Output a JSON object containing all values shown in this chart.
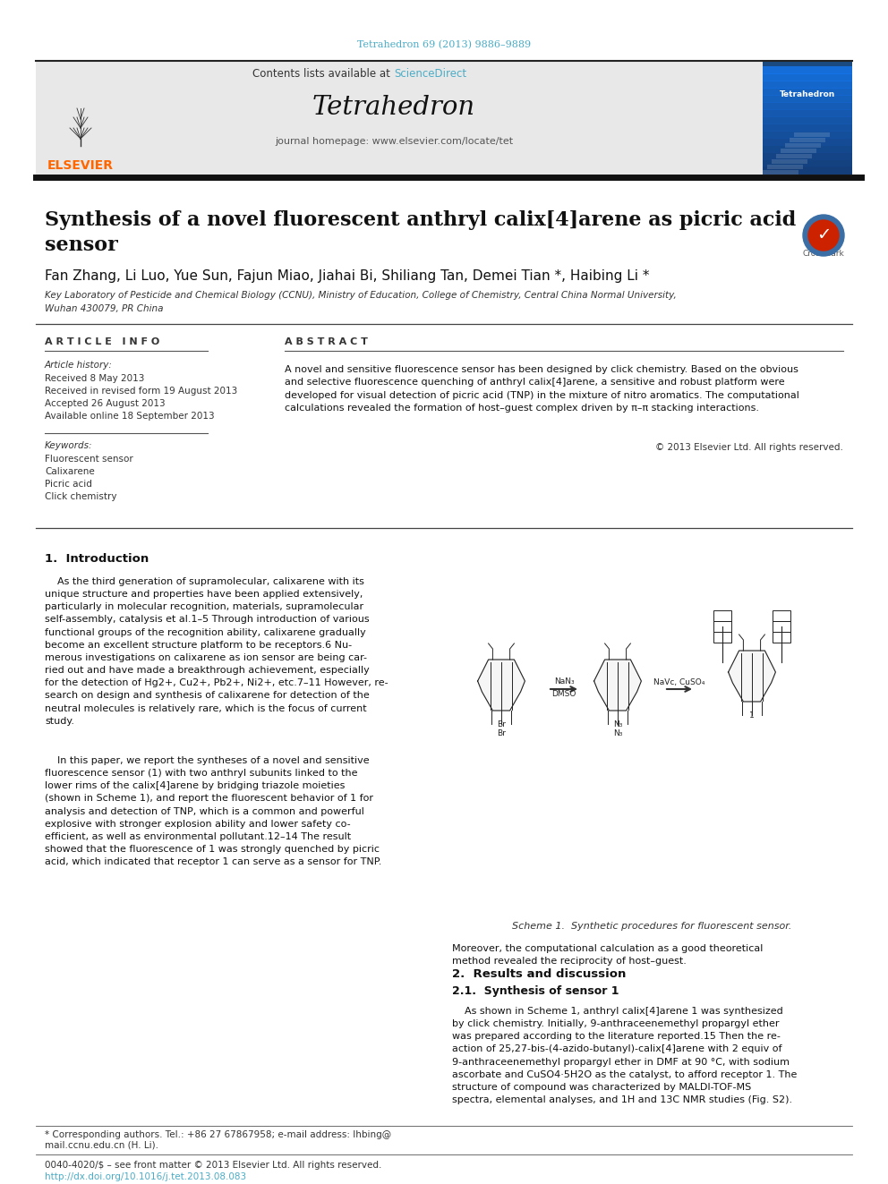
{
  "journal_ref": "Tetrahedron 69 (2013) 9886–9889",
  "journal_ref_color": "#4BACC6",
  "contents_text": "Contents lists available at ",
  "science_direct": "ScienceDirect",
  "science_direct_color": "#4BACC6",
  "journal_name": "Tetrahedron",
  "journal_homepage": "journal homepage: www.elsevier.com/locate/tet",
  "header_bg": "#E8E8E8",
  "title": "Synthesis of a novel fluorescent anthryl calix[4]arene as picric acid\nsensor",
  "authors_line": "Fan Zhang, Li Luo, Yue Sun, Fajun Miao, Jiahai Bi, Shiliang Tan, Demei Tian *, Haibing Li *",
  "affiliation_line1": "Key Laboratory of Pesticide and Chemical Biology (CCNU), Ministry of Education, College of Chemistry, Central China Normal University,",
  "affiliation_line2": "Wuhan 430079, PR China",
  "section_article_info": "A R T I C L E   I N F O",
  "section_abstract": "A B S T R A C T",
  "article_history_label": "Article history:",
  "received": "Received 8 May 2013",
  "received_revised": "Received in revised form 19 August 2013",
  "accepted": "Accepted 26 August 2013",
  "available": "Available online 18 September 2013",
  "keywords_label": "Keywords:",
  "keywords": [
    "Fluorescent sensor",
    "Calixarene",
    "Picric acid",
    "Click chemistry"
  ],
  "abstract_text": "A novel and sensitive fluorescence sensor has been designed by click chemistry. Based on the obvious\nand selective fluorescence quenching of anthryl calix[4]arene, a sensitive and robust platform were\ndeveloped for visual detection of picric acid (TNP) in the mixture of nitro aromatics. The computational\ncalculations revealed the formation of host–guest complex driven by π–π stacking interactions.",
  "copyright": "© 2013 Elsevier Ltd. All rights reserved.",
  "intro_heading": "1.  Introduction",
  "intro_para1": "    As the third generation of supramolecular, calixarene with its\nunique structure and properties have been applied extensively,\nparticularly in molecular recognition, materials, supramolecular\nself-assembly, catalysis et al.1–5 Through introduction of various\nfunctional groups of the recognition ability, calixarene gradually\nbecome an excellent structure platform to be receptors.6 Nu-\nmerous investigations on calixarene as ion sensor are being car-\nried out and have made a breakthrough achievement, especially\nfor the detection of Hg2+, Cu2+, Pb2+, Ni2+, etc.7–11 However, re-\nsearch on design and synthesis of calixarene for detection of the\nneutral molecules is relatively rare, which is the focus of current\nstudy.",
  "intro_para2": "    In this paper, we report the syntheses of a novel and sensitive\nfluorescence sensor (1) with two anthryl subunits linked to the\nlower rims of the calix[4]arene by bridging triazole moieties\n(shown in Scheme 1), and report the fluorescent behavior of 1 for\nanalysis and detection of TNP, which is a common and powerful\nexplosive with stronger explosion ability and lower safety co-\nefficient, as well as environmental pollutant.12–14 The result\nshowed that the fluorescence of 1 was strongly quenched by picric\nacid, which indicated that receptor 1 can serve as a sensor for TNP.",
  "right_col_text1": "Moreover, the computational calculation as a good theoretical\nmethod revealed the reciprocity of host–guest.",
  "results_heading": "2.  Results and discussion",
  "synthesis_heading": "2.1.  Synthesis of sensor 1",
  "synth_text": "    As shown in Scheme 1, anthryl calix[4]arene 1 was synthesized\nby click chemistry. Initially, 9-anthraceenemethyl propargyl ether\nwas prepared according to the literature reported.15 Then the re-\naction of 25,27-bis-(4-azido-butanyl)-calix[4]arene with 2 equiv of\n9-anthraceenemethyl propargyl ether in DMF at 90 °C, with sodium\nascorbate and CuSO4·5H2O as the catalyst, to afford receptor 1. The\nstructure of compound was characterized by MALDI-TOF-MS\nspectra, elemental analyses, and 1H and 13C NMR studies (Fig. S2).",
  "scheme_caption": "Scheme 1.  Synthetic procedures for fluorescent sensor.",
  "footer_star": "* Corresponding authors. Tel.: +86 27 67867958; e-mail address: lhbing@",
  "footer_email_line2": "mail.ccnu.edu.cn (H. Li).",
  "footer_bottom1": "0040-4020/$ – see front matter © 2013 Elsevier Ltd. All rights reserved.",
  "footer_bottom2": "http://dx.doi.org/10.1016/j.tet.2013.08.083",
  "footer_bottom2_color": "#4BACC6",
  "link_color": "#4BACC6"
}
